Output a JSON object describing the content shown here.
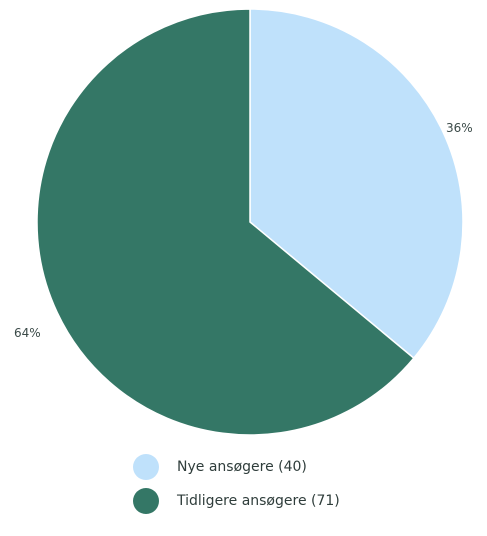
{
  "chart_data": {
    "type": "pie",
    "series": [
      {
        "name": "Nye ansøgere (40)",
        "value": 40,
        "percent_label": "36%",
        "color": "#bfe1fb"
      },
      {
        "name": "Tidligere ansøgere (71)",
        "value": 71,
        "percent_label": "64%",
        "color": "#347766"
      }
    ],
    "legend_placement": "bottom",
    "start_angle": "top",
    "direction": "clockwise"
  }
}
